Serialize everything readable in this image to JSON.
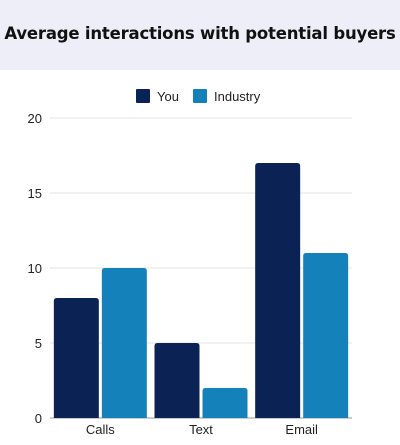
{
  "chart_data": {
    "type": "bar",
    "title": "Average interactions with potential buyers",
    "categories": [
      "Calls",
      "Text",
      "Email"
    ],
    "series": [
      {
        "name": "You",
        "values": [
          8,
          5,
          17
        ],
        "color": "#0b2354"
      },
      {
        "name": "Industry",
        "values": [
          10,
          2,
          11
        ],
        "color": "#1581bb"
      }
    ],
    "ylim": [
      0,
      20
    ],
    "yticks": [
      "0",
      "5",
      "10",
      "15",
      "20"
    ],
    "grid": true,
    "legend": "top-center",
    "xlabel": "",
    "ylabel": ""
  }
}
